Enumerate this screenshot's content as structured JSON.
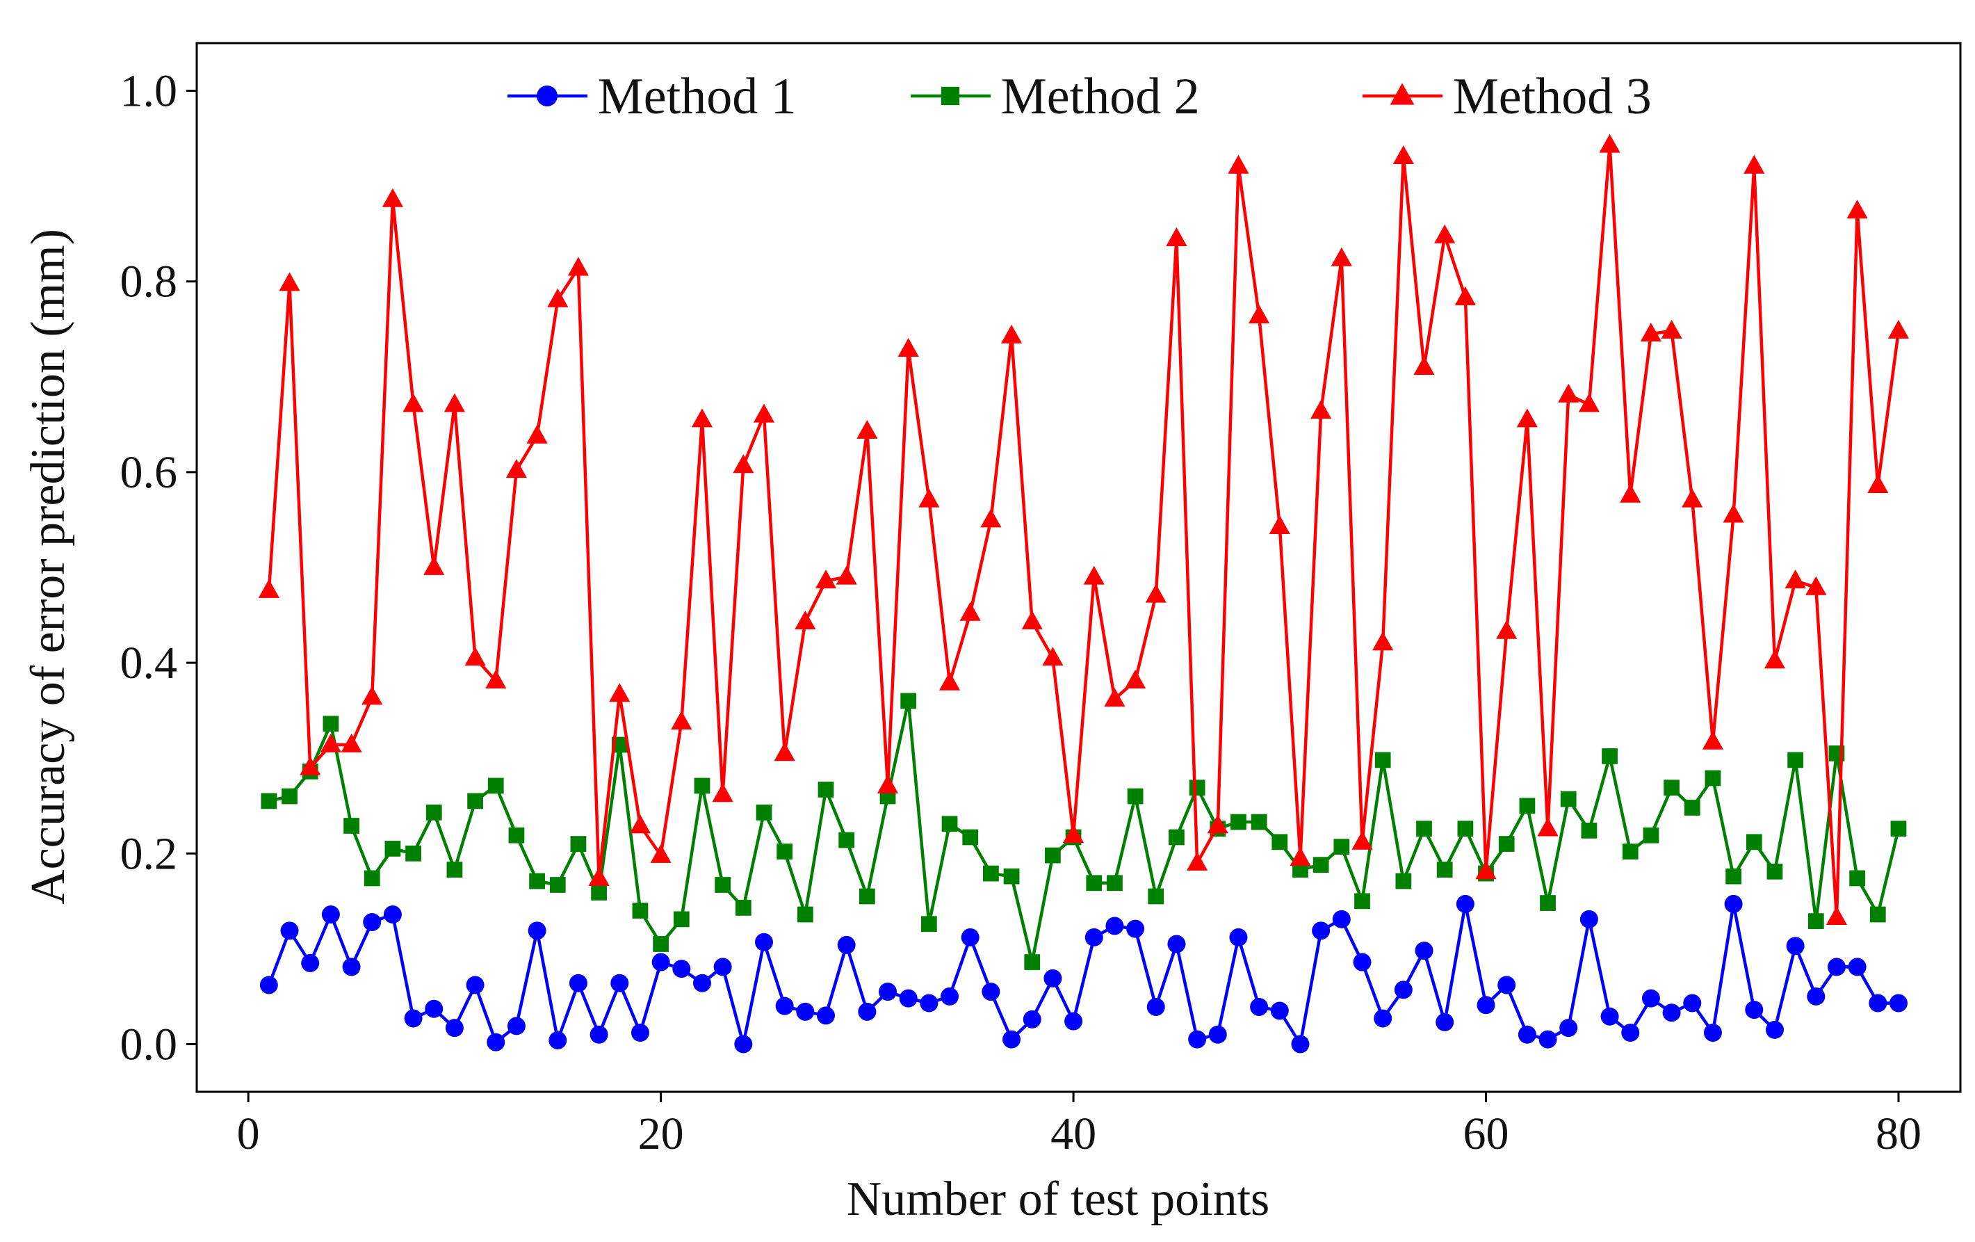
{
  "chart_data": {
    "type": "line",
    "title": "",
    "xlabel": "Number of test points",
    "ylabel": "Accuracy of error prediction (mm)",
    "xlim": [
      -2.5,
      83
    ],
    "ylim": [
      -0.05,
      1.05
    ],
    "xticks": [
      0,
      20,
      40,
      60,
      80
    ],
    "xtick_labels": [
      "0",
      "20",
      "40",
      "60",
      "80"
    ],
    "yticks": [
      0.0,
      0.2,
      0.4,
      0.6,
      0.8,
      1.0
    ],
    "ytick_labels": [
      "0.0",
      "0.2",
      "0.4",
      "0.6",
      "0.8",
      "1.0"
    ],
    "grid": false,
    "legend_position": "top-center",
    "x": [
      1,
      2,
      3,
      4,
      5,
      6,
      7,
      8,
      9,
      10,
      11,
      12,
      13,
      14,
      15,
      16,
      17,
      18,
      19,
      20,
      21,
      22,
      23,
      24,
      25,
      26,
      27,
      28,
      29,
      30,
      31,
      32,
      33,
      34,
      35,
      36,
      37,
      38,
      39,
      40,
      41,
      42,
      43,
      44,
      45,
      46,
      47,
      48,
      49,
      50,
      51,
      52,
      53,
      54,
      55,
      56,
      57,
      58,
      59,
      60,
      61,
      62,
      63,
      64,
      65,
      66,
      67,
      68,
      69,
      70,
      71,
      72,
      73,
      74,
      75,
      76,
      77,
      78,
      79,
      80
    ],
    "series": [
      {
        "name": "Method 1",
        "color": "#0000ff",
        "marker": "circle",
        "values": [
          0.062,
          0.119,
          0.085,
          0.136,
          0.081,
          0.128,
          0.136,
          0.027,
          0.037,
          0.017,
          0.062,
          0.002,
          0.019,
          0.119,
          0.004,
          0.064,
          0.01,
          0.064,
          0.012,
          0.086,
          0.079,
          0.064,
          0.081,
          0.0,
          0.107,
          0.04,
          0.034,
          0.03,
          0.104,
          0.034,
          0.055,
          0.048,
          0.043,
          0.05,
          0.112,
          0.055,
          0.005,
          0.026,
          0.069,
          0.024,
          0.112,
          0.124,
          0.121,
          0.039,
          0.105,
          0.005,
          0.01,
          0.112,
          0.039,
          0.035,
          0.0,
          0.119,
          0.131,
          0.086,
          0.027,
          0.057,
          0.098,
          0.023,
          0.147,
          0.041,
          0.062,
          0.01,
          0.005,
          0.017,
          0.131,
          0.029,
          0.012,
          0.048,
          0.033,
          0.043,
          0.012,
          0.147,
          0.036,
          0.015,
          0.103,
          0.05,
          0.081,
          0.081,
          0.043,
          0.043
        ]
      },
      {
        "name": "Method 2",
        "color": "#008000",
        "marker": "square",
        "values": [
          0.255,
          0.26,
          0.286,
          0.336,
          0.229,
          0.174,
          0.205,
          0.2,
          0.243,
          0.183,
          0.255,
          0.271,
          0.219,
          0.171,
          0.167,
          0.21,
          0.159,
          0.314,
          0.14,
          0.105,
          0.131,
          0.271,
          0.167,
          0.143,
          0.243,
          0.202,
          0.136,
          0.267,
          0.214,
          0.155,
          0.26,
          0.36,
          0.126,
          0.231,
          0.217,
          0.179,
          0.176,
          0.086,
          0.198,
          0.217,
          0.169,
          0.169,
          0.26,
          0.155,
          0.217,
          0.269,
          0.226,
          0.233,
          0.233,
          0.212,
          0.183,
          0.188,
          0.207,
          0.15,
          0.298,
          0.171,
          0.226,
          0.183,
          0.226,
          0.179,
          0.21,
          0.25,
          0.148,
          0.257,
          0.224,
          0.302,
          0.202,
          0.219,
          0.269,
          0.248,
          0.279,
          0.176,
          0.212,
          0.181,
          0.298,
          0.129,
          0.305,
          0.174,
          0.136,
          0.226
        ]
      },
      {
        "name": "Method 3",
        "color": "#ff0000",
        "marker": "triangle",
        "values": [
          0.476,
          0.798,
          0.29,
          0.314,
          0.314,
          0.364,
          0.886,
          0.671,
          0.5,
          0.671,
          0.405,
          0.381,
          0.602,
          0.638,
          0.781,
          0.814,
          0.174,
          0.367,
          0.229,
          0.198,
          0.338,
          0.655,
          0.262,
          0.607,
          0.66,
          0.305,
          0.443,
          0.486,
          0.49,
          0.643,
          0.271,
          0.729,
          0.571,
          0.379,
          0.452,
          0.55,
          0.743,
          0.443,
          0.405,
          0.219,
          0.49,
          0.362,
          0.381,
          0.471,
          0.845,
          0.19,
          0.229,
          0.921,
          0.764,
          0.543,
          0.195,
          0.664,
          0.824,
          0.212,
          0.421,
          0.931,
          0.71,
          0.848,
          0.783,
          0.181,
          0.433,
          0.655,
          0.226,
          0.681,
          0.671,
          0.943,
          0.576,
          0.745,
          0.748,
          0.571,
          0.317,
          0.555,
          0.921,
          0.402,
          0.486,
          0.479,
          0.133,
          0.874,
          0.586,
          0.748
        ]
      }
    ]
  }
}
